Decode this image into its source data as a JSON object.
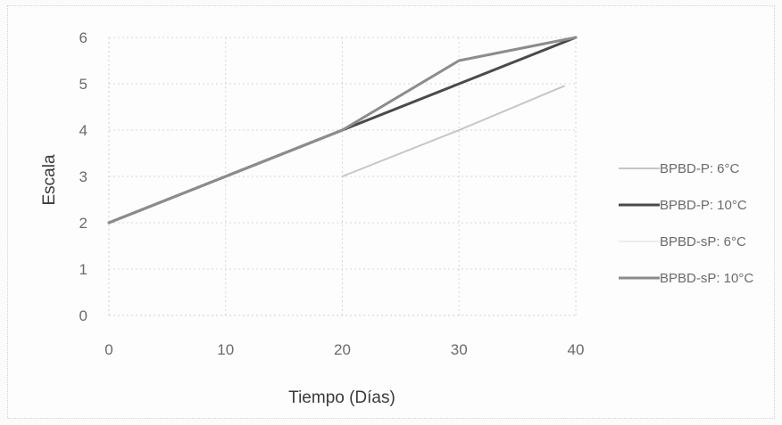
{
  "chart_data": {
    "type": "line",
    "title": "",
    "xlabel": "Tiempo (Días)",
    "ylabel": "Escala",
    "xlim": [
      0,
      40
    ],
    "ylim": [
      0,
      6
    ],
    "x_ticks": [
      "0",
      "10",
      "20",
      "30",
      "40"
    ],
    "y_ticks": [
      "0",
      "1",
      "2",
      "3",
      "4",
      "5",
      "6"
    ],
    "grid": true,
    "legend_position": "right",
    "series": [
      {
        "name": "BPBD-P: 6°C",
        "color": "#c6c6c6",
        "width": 2,
        "points": [
          [
            20,
            3
          ],
          [
            30,
            4
          ],
          [
            39,
            4.95
          ]
        ]
      },
      {
        "name": "BPBD-P: 10°C",
        "color": "#4a4a4a",
        "width": 3,
        "points": [
          [
            0,
            2
          ],
          [
            10,
            3
          ],
          [
            20,
            4
          ],
          [
            30,
            5
          ],
          [
            40,
            6
          ]
        ]
      },
      {
        "name": "BPBD-sP: 6°C",
        "color": "#ececec",
        "width": 2,
        "points": []
      },
      {
        "name": "BPBD-sP: 10°C",
        "color": "#8c8c8c",
        "width": 3,
        "points": [
          [
            0,
            2
          ],
          [
            10,
            3
          ],
          [
            20,
            4
          ],
          [
            30,
            5.5
          ],
          [
            40,
            6
          ]
        ]
      }
    ]
  }
}
